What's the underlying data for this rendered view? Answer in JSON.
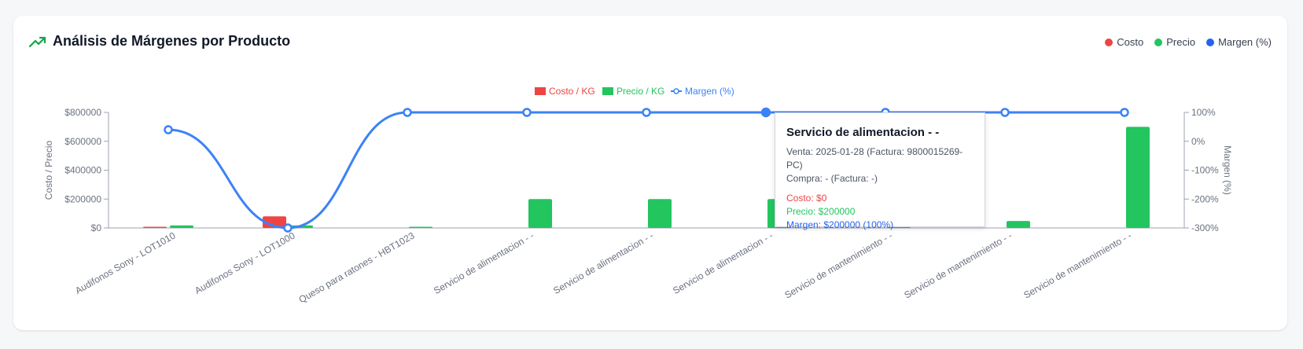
{
  "header": {
    "title": "Análisis de Márgenes por Producto",
    "icon": "trending-up-icon"
  },
  "top_legend": [
    {
      "label": "Costo",
      "color": "#ef4444"
    },
    {
      "label": "Precio",
      "color": "#22c55e"
    },
    {
      "label": "Margen (%)",
      "color": "#2563eb"
    }
  ],
  "colors": {
    "cost": "#ef4444",
    "price": "#22c55e",
    "margin": "#3b82f6",
    "axis": "#9ca3af",
    "tick_text": "#6b7280"
  },
  "chart_data": {
    "type": "bar",
    "categories": [
      "Audifonos Sony - LOT1010",
      "Audifonos Sony - LOT1000",
      "Queso para ratones - HBT1023",
      "Servicio de alimentacion - -",
      "Servicio de alimentacion - -",
      "Servicio de alimentacion - -",
      "Servicio de mantenimiento - -",
      "Servicio de mantenimiento - -",
      "Servicio de mantenimiento - -"
    ],
    "series": [
      {
        "name": "Costo / KG",
        "kind": "bar",
        "axis": "left",
        "color": "#ef4444",
        "values": [
          8000,
          80000,
          0,
          0,
          0,
          0,
          0,
          0,
          0
        ]
      },
      {
        "name": "Precio / KG",
        "kind": "bar",
        "axis": "left",
        "color": "#22c55e",
        "values": [
          18000,
          18000,
          8000,
          200000,
          200000,
          200000,
          200000,
          48000,
          700000
        ]
      },
      {
        "name": "Margen (%)",
        "kind": "line",
        "axis": "right",
        "color": "#3b82f6",
        "values": [
          40,
          -300,
          100,
          100,
          100,
          100,
          100,
          100,
          100
        ]
      }
    ],
    "ylabel": "Costo / Precio",
    "y2label": "Margen (%)",
    "ylim": [
      0,
      800000
    ],
    "y2lim": [
      -300,
      100
    ],
    "y_ticks": [
      "$0",
      "$200000",
      "$400000",
      "$600000",
      "$800000"
    ],
    "y2_ticks": [
      "-300%",
      "-200%",
      "-100%",
      "0%",
      "100%"
    ],
    "legend_position": "top-center",
    "active_index": 5,
    "grid": false
  },
  "tooltip": {
    "title": "Servicio de alimentacion - -",
    "venta": "Venta: 2025-01-28 (Factura: 9800015269-PC)",
    "compra": "Compra: - (Factura: -)",
    "costo": "Costo: $0",
    "precio": "Precio: $200000",
    "margen": "Margen: $200000 (100%)"
  }
}
